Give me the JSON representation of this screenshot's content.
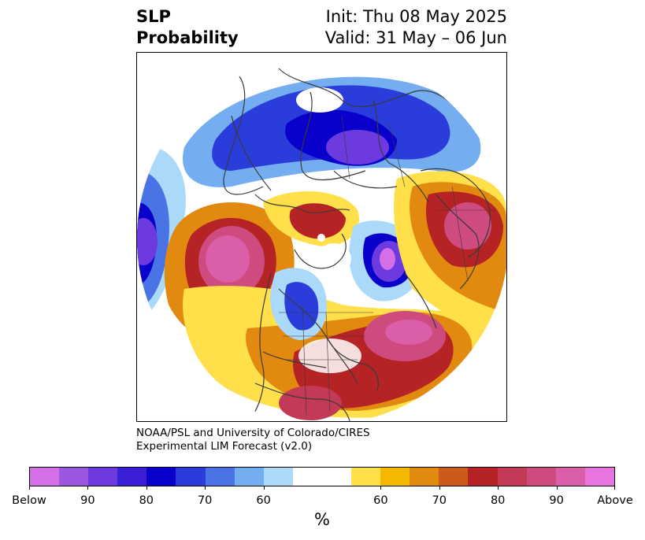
{
  "title": {
    "left_line1": "SLP",
    "left_line2": "Probability",
    "right_line1": "Init: Thu 08 May 2025",
    "right_line2": "Valid: 31 May – 06 Jun"
  },
  "credit": {
    "line1": "NOAA/PSL and University of Colorado/CIRES",
    "line2": "Experimental LIM Forecast (v2.0)"
  },
  "colorbar": {
    "colors": [
      "#d46fe8",
      "#9b57e2",
      "#6d3ae0",
      "#3b1fd6",
      "#0a00cc",
      "#2a3ddb",
      "#4a73e6",
      "#74aef0",
      "#abd9f9",
      "#ffffff",
      "#ffffff",
      "#ffe04a",
      "#f4b800",
      "#e28a10",
      "#cc5a18",
      "#b52324",
      "#c23a55",
      "#cd4b7e",
      "#da5fa8",
      "#e874e0"
    ],
    "labels": [
      "Below",
      "90",
      "80",
      "70",
      "60",
      "60",
      "70",
      "80",
      "90",
      "Above"
    ],
    "unit": "%"
  },
  "map": {
    "projection": "north-polar-stereographic",
    "variable": "SLP",
    "colors": {
      "below_strong": "#0a00cc",
      "below_mid": "#3b1fd6",
      "below_weak": "#4a73e6",
      "below_light": "#abd9f9",
      "above_light": "#ffe04a",
      "above_mid": "#e28a10",
      "above_strong": "#b52324",
      "above_max": "#da5fa8",
      "coastline": "#3a3a3a"
    }
  }
}
